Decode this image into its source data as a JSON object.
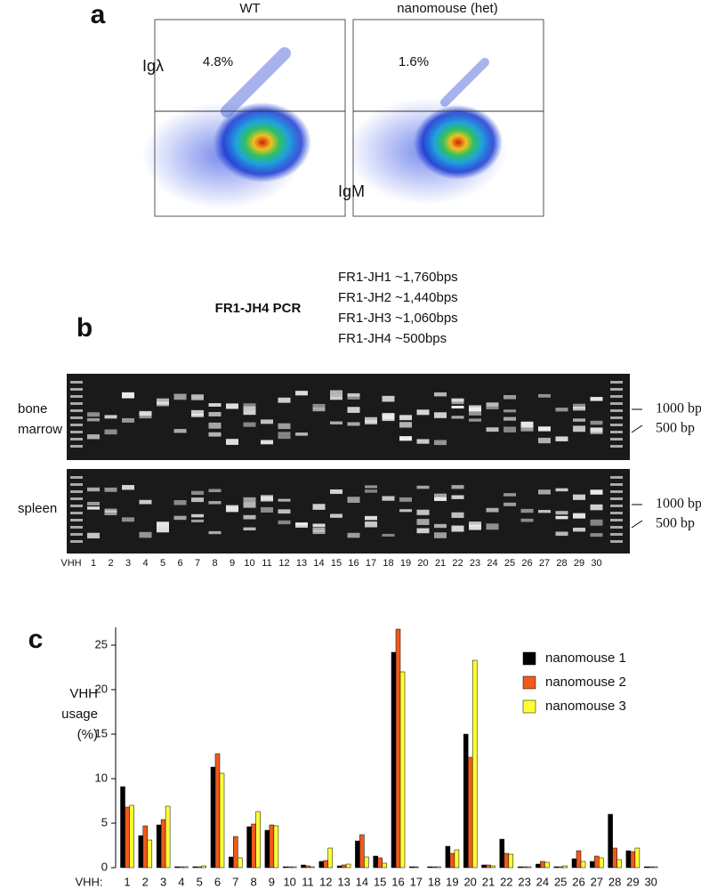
{
  "panel_a": {
    "label": "a",
    "columns": [
      "WT",
      "nanomouse (het)"
    ],
    "y_axis": "Igλ",
    "x_axis": "IgM",
    "percentages": [
      "4.8%",
      "1.6%"
    ]
  },
  "panel_b": {
    "label": "b",
    "title": "FR1-JH4 PCR",
    "products": [
      "FR1-JH1 ~1,760bps",
      "FR1-JH2 ~1,440bps",
      "FR1-JH3 ~1,060bps",
      "FR1-JH4 ~500bps"
    ],
    "gels": [
      {
        "name": [
          "bone",
          "marrow"
        ]
      },
      {
        "name": [
          "spleen"
        ]
      }
    ],
    "markers": [
      "1000 bp",
      "500 bp"
    ],
    "lane_prefix": "VHH",
    "lanes": [
      "1",
      "2",
      "3",
      "4",
      "5",
      "6",
      "7",
      "8",
      "9",
      "10",
      "11",
      "12",
      "13",
      "14",
      "15",
      "16",
      "17",
      "18",
      "19",
      "20",
      "21",
      "22",
      "23",
      "24",
      "25",
      "26",
      "27",
      "28",
      "29",
      "30"
    ]
  },
  "chart_data": {
    "type": "bar",
    "label": "c",
    "y_label": [
      "VHH",
      "usage",
      "(%)"
    ],
    "x_prefix": "VHH:",
    "categories": [
      "1",
      "2",
      "3",
      "4",
      "5",
      "6",
      "7",
      "8",
      "9",
      "10",
      "11",
      "12",
      "13",
      "14",
      "15",
      "16",
      "17",
      "18",
      "19",
      "20",
      "21",
      "22",
      "23",
      "24",
      "25",
      "26",
      "27",
      "28",
      "29",
      "30"
    ],
    "ylim": [
      0,
      27
    ],
    "yticks": [
      0,
      5,
      10,
      15,
      20,
      25
    ],
    "series": [
      {
        "name": "nanomouse 1",
        "color": "#000000",
        "values": [
          9.1,
          3.6,
          4.8,
          0.1,
          0.1,
          11.3,
          1.2,
          4.6,
          4.2,
          0.1,
          0.3,
          0.7,
          0.2,
          3.0,
          1.3,
          24.2,
          0.1,
          0.1,
          2.4,
          15.0,
          0.3,
          3.2,
          0.1,
          0.4,
          0.1,
          1.0,
          0.7,
          6.0,
          1.9,
          0.1
        ]
      },
      {
        "name": "nanomouse 2",
        "color": "#f05a1a",
        "values": [
          6.8,
          4.7,
          5.4,
          0.1,
          0.1,
          12.8,
          3.5,
          4.9,
          4.8,
          0.1,
          0.2,
          0.8,
          0.3,
          3.7,
          1.1,
          26.8,
          0.1,
          0.1,
          1.6,
          12.4,
          0.3,
          1.6,
          0.1,
          0.7,
          0.1,
          1.9,
          1.3,
          2.2,
          1.8,
          0.1
        ]
      },
      {
        "name": "nanomouse 3",
        "color": "#ffff33",
        "values": [
          7.0,
          3.1,
          6.9,
          0.1,
          0.2,
          10.6,
          1.1,
          6.3,
          4.7,
          0.1,
          0.1,
          2.2,
          0.4,
          1.2,
          0.5,
          22.0,
          0,
          0.1,
          2.0,
          23.3,
          0.2,
          1.5,
          0.1,
          0.6,
          0.2,
          0.7,
          1.1,
          0.9,
          2.2,
          0.1
        ]
      }
    ]
  }
}
